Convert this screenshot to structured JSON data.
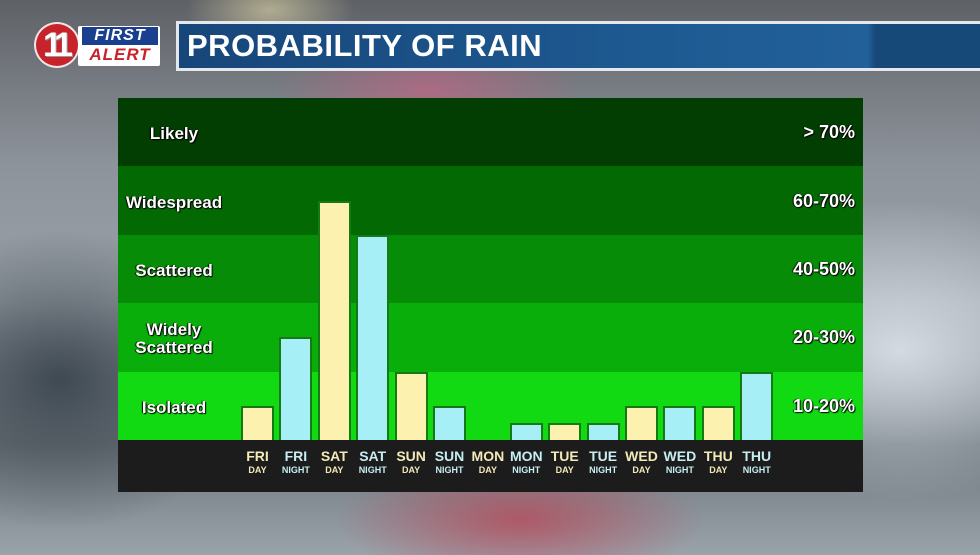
{
  "header": {
    "logo": {
      "number": "11",
      "line1": "FIRST",
      "line2": "ALERT"
    },
    "title": "PROBABILITY OF RAIN"
  },
  "colors": {
    "day_bar": "#fdf1b0",
    "night_bar": "#a6eff6",
    "title_bar": "#1e5a92",
    "axis_bg": "#1c1c1c",
    "day_label": "#f3eab8",
    "night_label": "#c7eef3"
  },
  "bands": [
    {
      "label": "Likely",
      "range": "> 70%",
      "color": "#023d02"
    },
    {
      "label": "Widespread",
      "range": "60-70%",
      "color": "#036a03"
    },
    {
      "label": "Scattered",
      "range": "40-50%",
      "color": "#068c06"
    },
    {
      "label": "Widely Scattered",
      "range": "20-30%",
      "color": "#0aae0a"
    },
    {
      "label": "Isolated",
      "range": "10-20%",
      "color": "#12da12"
    }
  ],
  "chart_data": {
    "type": "bar",
    "title": "PROBABILITY OF RAIN",
    "xlabel": "",
    "ylabel": "",
    "categories": [
      "FRI DAY",
      "FRI NIGHT",
      "SAT DAY",
      "SAT NIGHT",
      "SUN DAY",
      "SUN NIGHT",
      "MON DAY",
      "MON NIGHT",
      "TUE DAY",
      "TUE NIGHT",
      "WED DAY",
      "WED NIGHT",
      "THU DAY",
      "THU NIGHT"
    ],
    "x": [
      {
        "day": "FRI",
        "period": "DAY"
      },
      {
        "day": "FRI",
        "period": "NIGHT"
      },
      {
        "day": "SAT",
        "period": "DAY"
      },
      {
        "day": "SAT",
        "period": "NIGHT"
      },
      {
        "day": "SUN",
        "period": "DAY"
      },
      {
        "day": "SUN",
        "period": "NIGHT"
      },
      {
        "day": "MON",
        "period": "DAY"
      },
      {
        "day": "MON",
        "period": "NIGHT"
      },
      {
        "day": "TUE",
        "period": "DAY"
      },
      {
        "day": "TUE",
        "period": "NIGHT"
      },
      {
        "day": "WED",
        "period": "DAY"
      },
      {
        "day": "WED",
        "period": "NIGHT"
      },
      {
        "day": "THU",
        "period": "DAY"
      },
      {
        "day": "THU",
        "period": "NIGHT"
      }
    ],
    "band_units": [
      0.5,
      1.5,
      3.5,
      3.0,
      1.0,
      0.5,
      0,
      0.25,
      0.25,
      0.25,
      0.5,
      0.5,
      0.5,
      1.0
    ],
    "values_pct_est": [
      10,
      30,
      65,
      60,
      20,
      10,
      0,
      5,
      5,
      5,
      10,
      10,
      10,
      20
    ],
    "y_categories": [
      "Isolated 10-20%",
      "Widely Scattered 20-30%",
      "Scattered 40-50%",
      "Widespread 60-70%",
      "Likely > 70%"
    ],
    "grid": false,
    "legend": "none"
  }
}
